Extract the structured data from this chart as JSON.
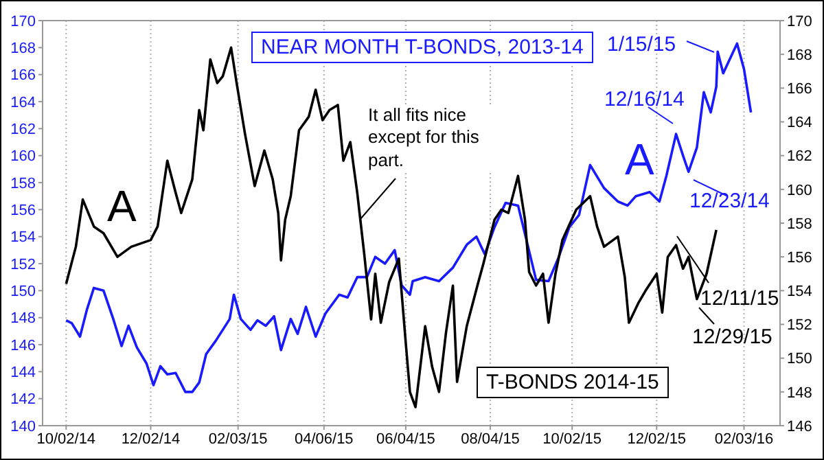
{
  "chart_data": {
    "type": "line",
    "xlim": [
      "2014-09-15",
      "2016-02-29"
    ],
    "xticks": [
      {
        "value": "2014-10-02",
        "label": "10/02/14"
      },
      {
        "value": "2014-12-02",
        "label": "12/02/14"
      },
      {
        "value": "2015-02-03",
        "label": "02/03/15"
      },
      {
        "value": "2015-04-06",
        "label": "04/06/15"
      },
      {
        "value": "2015-06-04",
        "label": "06/04/15"
      },
      {
        "value": "2015-08-04",
        "label": "08/04/15"
      },
      {
        "value": "2015-10-02",
        "label": "10/02/15"
      },
      {
        "value": "2015-12-02",
        "label": "12/02/15"
      },
      {
        "value": "2016-02-03",
        "label": "02/03/16"
      }
    ],
    "ylim": [
      140,
      170
    ],
    "yticks": [
      140,
      142,
      144,
      146,
      148,
      150,
      152,
      154,
      156,
      158,
      160,
      162,
      164,
      166,
      168,
      170
    ],
    "y2lim": [
      146,
      170
    ],
    "y2ticks": [
      146,
      148,
      150,
      152,
      154,
      156,
      158,
      160,
      162,
      164,
      166,
      168,
      170
    ],
    "grid": "x",
    "marker": "none",
    "line_style": "solid",
    "series": [
      {
        "name": "NEAR MONTH T-BONDS, 2013-14",
        "color": "#1a1aff",
        "x": [
          "2014-10-02",
          "2014-10-06",
          "2014-10-12",
          "2014-10-17",
          "2014-10-22",
          "2014-10-29",
          "2014-11-05",
          "2014-11-11",
          "2014-11-16",
          "2014-11-22",
          "2014-11-29",
          "2014-12-04",
          "2014-12-09",
          "2014-12-14",
          "2014-12-20",
          "2014-12-27",
          "2015-01-01",
          "2015-01-06",
          "2015-01-11",
          "2015-01-18",
          "2015-01-23",
          "2015-01-28",
          "2015-01-31",
          "2015-02-05",
          "2015-02-12",
          "2015-02-17",
          "2015-02-23",
          "2015-03-01",
          "2015-03-06",
          "2015-03-13",
          "2015-03-18",
          "2015-03-24",
          "2015-03-31",
          "2015-04-07",
          "2015-04-17",
          "2015-04-23",
          "2015-04-30",
          "2015-05-07",
          "2015-05-13",
          "2015-05-20",
          "2015-05-27",
          "2015-06-01",
          "2015-06-07",
          "2015-06-09",
          "2015-06-18",
          "2015-06-28",
          "2015-07-08",
          "2015-07-18",
          "2015-07-25",
          "2015-07-31",
          "2015-08-07",
          "2015-08-15",
          "2015-08-24",
          "2015-08-29",
          "2015-09-06",
          "2015-09-15",
          "2015-09-22",
          "2015-09-30",
          "2015-10-07",
          "2015-10-15",
          "2015-10-25",
          "2015-11-04",
          "2015-11-11",
          "2015-11-17",
          "2015-11-27",
          "2015-12-04",
          "2015-12-09",
          "2015-12-16",
          "2015-12-21",
          "2015-12-25",
          "2015-12-31",
          "2016-01-05",
          "2016-01-10",
          "2016-01-14",
          "2016-01-15",
          "2016-01-19",
          "2016-01-24",
          "2016-01-29",
          "2016-02-03",
          "2016-02-08"
        ],
        "values": [
          147.8,
          147.6,
          146.6,
          148.6,
          150.2,
          150.0,
          147.9,
          145.9,
          147.4,
          145.8,
          144.6,
          143.0,
          144.4,
          143.8,
          143.9,
          142.5,
          142.5,
          143.2,
          145.3,
          146.3,
          147.1,
          147.9,
          149.7,
          147.9,
          147.1,
          147.8,
          147.4,
          148.1,
          145.6,
          147.9,
          146.8,
          148.8,
          146.6,
          148.3,
          149.7,
          149.5,
          151.0,
          151.0,
          152.5,
          152.0,
          153.0,
          150.4,
          149.7,
          150.7,
          151.0,
          150.7,
          151.7,
          153.4,
          154.0,
          152.7,
          154.7,
          156.5,
          156.3,
          154.2,
          150.8,
          150.7,
          152.4,
          154.7,
          155.6,
          159.3,
          157.6,
          156.6,
          156.3,
          157.0,
          157.3,
          156.6,
          158.5,
          161.6,
          160.0,
          158.8,
          160.6,
          164.7,
          163.2,
          165.1,
          167.7,
          166.1,
          167.2,
          168.3,
          166.4,
          163.2
        ]
      },
      {
        "name": "T-BONDS 2014-15",
        "color": "#000000",
        "axis": "y2",
        "x": [
          "2014-10-02",
          "2014-10-09",
          "2014-10-14",
          "2014-10-22",
          "2014-10-29",
          "2014-11-08",
          "2014-11-18",
          "2014-12-02",
          "2014-12-07",
          "2014-12-14",
          "2014-12-20",
          "2014-12-24",
          "2015-01-01",
          "2015-01-06",
          "2015-01-09",
          "2015-01-14",
          "2015-01-19",
          "2015-01-23",
          "2015-01-29",
          "2015-02-02",
          "2015-02-08",
          "2015-02-15",
          "2015-02-22",
          "2015-02-28",
          "2015-03-04",
          "2015-03-06",
          "2015-03-09",
          "2015-03-13",
          "2015-03-19",
          "2015-03-26",
          "2015-03-31",
          "2015-04-05",
          "2015-04-10",
          "2015-04-16",
          "2015-04-20",
          "2015-04-25",
          "2015-04-30",
          "2015-05-05",
          "2015-05-10",
          "2015-05-13",
          "2015-05-17",
          "2015-05-23",
          "2015-05-30",
          "2015-06-04",
          "2015-06-07",
          "2015-06-11",
          "2015-06-18",
          "2015-06-23",
          "2015-06-28",
          "2015-07-03",
          "2015-07-08",
          "2015-07-11",
          "2015-07-18",
          "2015-07-26",
          "2015-07-30",
          "2015-08-07",
          "2015-08-12",
          "2015-08-17",
          "2015-08-24",
          "2015-08-29",
          "2015-09-01",
          "2015-09-06",
          "2015-09-11",
          "2015-09-15",
          "2015-09-20",
          "2015-09-25",
          "2015-10-05",
          "2015-10-15",
          "2015-10-20",
          "2015-10-25",
          "2015-11-04",
          "2015-11-09",
          "2015-11-12",
          "2015-11-19",
          "2015-11-24",
          "2015-12-02",
          "2015-12-06",
          "2015-12-10",
          "2015-12-16",
          "2015-12-21",
          "2015-12-25",
          "2015-12-31",
          "2016-01-07",
          "2016-01-14"
        ],
        "values": [
          154.4,
          156.6,
          159.4,
          157.8,
          157.4,
          156.0,
          156.6,
          157.0,
          157.8,
          161.7,
          159.8,
          158.6,
          160.6,
          164.7,
          163.5,
          167.7,
          166.3,
          166.7,
          168.4,
          166.3,
          163.3,
          160.2,
          162.3,
          160.6,
          158.6,
          155.8,
          158.2,
          159.6,
          163.5,
          164.3,
          165.9,
          164.1,
          164.7,
          165.0,
          161.7,
          162.8,
          159.8,
          156.2,
          152.3,
          155.0,
          152.1,
          154.5,
          155.9,
          150.9,
          148.0,
          147.1,
          151.9,
          149.5,
          148.0,
          151.5,
          154.3,
          148.6,
          151.9,
          154.4,
          155.6,
          158.2,
          158.8,
          158.6,
          160.8,
          158.2,
          155.1,
          154.3,
          155.0,
          152.1,
          155.0,
          157.0,
          158.8,
          159.6,
          157.8,
          156.6,
          157.2,
          154.8,
          152.1,
          153.3,
          154.0,
          155.0,
          152.7,
          156.0,
          156.7,
          155.3,
          156.0,
          153.5,
          155.0,
          157.6
        ]
      }
    ],
    "annotations": [
      "A",
      "A",
      "It all fits nice except for this part.",
      "1/15/15",
      "12/16/14",
      "12/23/14",
      "12/11/15",
      "12/29/15"
    ]
  }
}
